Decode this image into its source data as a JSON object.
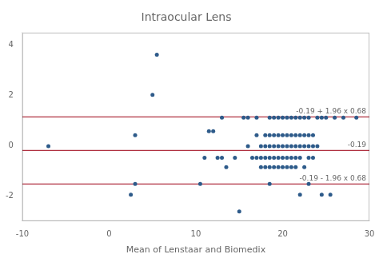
{
  "chart_data": {
    "type": "scatter",
    "title": "Intraocular Lens",
    "xlabel": "Mean of Lenstaar and Biomedix",
    "x": [
      5.5,
      5.0,
      3.0,
      -7.0,
      2.5,
      3.0,
      10.5,
      11.5,
      12.5,
      13.0,
      13.0,
      13.5,
      14.5,
      15.5,
      16.0,
      16.5,
      17.0,
      17.0,
      17.5,
      17.5,
      17.5,
      18.0,
      18.0,
      18.0,
      18.0,
      18.5,
      18.5,
      18.5,
      18.5,
      18.5,
      19.0,
      19.0,
      19.0,
      19.0,
      19.0,
      19.5,
      19.5,
      19.5,
      19.5,
      19.5,
      20.0,
      20.0,
      20.0,
      20.0,
      20.0,
      20.5,
      20.5,
      20.5,
      20.5,
      20.5,
      21.0,
      21.0,
      21.0,
      21.0,
      21.0,
      21.5,
      21.5,
      21.5,
      21.5,
      21.5,
      22.0,
      22.0,
      22.0,
      22.0,
      22.5,
      22.5,
      22.5,
      22.5,
      23.0,
      23.0,
      23.0,
      23.0,
      23.0,
      23.5,
      23.5,
      23.5,
      24.0,
      24.0,
      24.5,
      25.0,
      25.5,
      26.0,
      27.0,
      28.5,
      15.0,
      18.5,
      22.0,
      24.5,
      12.0,
      16.0,
      17.0,
      11.0
    ],
    "values": [
      3.62,
      2.02,
      0.42,
      -0.02,
      -1.95,
      -1.52,
      -1.52,
      0.58,
      -0.48,
      -0.48,
      1.12,
      -0.85,
      -0.48,
      1.12,
      -0.02,
      -0.48,
      -0.48,
      1.12,
      -0.02,
      -0.48,
      -0.85,
      -0.02,
      -0.48,
      -0.85,
      0.42,
      -0.02,
      -0.48,
      -0.85,
      0.42,
      1.12,
      -0.02,
      -0.48,
      -0.85,
      0.42,
      1.12,
      -0.02,
      -0.48,
      -0.85,
      0.42,
      1.12,
      -0.02,
      -0.48,
      -0.85,
      0.42,
      1.12,
      -0.02,
      -0.48,
      -0.85,
      0.42,
      1.12,
      -0.02,
      -0.48,
      -0.85,
      0.42,
      1.12,
      -0.02,
      -0.48,
      -0.85,
      0.42,
      1.12,
      -0.02,
      -0.48,
      0.42,
      1.12,
      -0.02,
      -0.85,
      0.42,
      1.12,
      -0.02,
      -0.48,
      0.42,
      1.12,
      -1.52,
      -0.02,
      -0.48,
      0.42,
      -0.02,
      1.12,
      1.12,
      1.12,
      -1.95,
      1.12,
      1.12,
      1.12,
      -2.62,
      -1.52,
      -1.95,
      -1.95,
      0.58,
      1.12,
      0.42,
      -0.48
    ],
    "color": "#2e5b8a",
    "hlines": [
      {
        "value": -0.19,
        "label": "-0.19",
        "color": "#b03040"
      },
      {
        "value": 1.1428,
        "label": "-0.19 + 1.96 x 0.68",
        "color": "#b03040"
      },
      {
        "value": -1.5228,
        "label": "-0.19 - 1.96 x 0.68",
        "color": "#b03040"
      }
    ],
    "xlim": [
      -10,
      30
    ],
    "ylim": [
      -3,
      4.5
    ],
    "xticks": [
      -10,
      0,
      10,
      20,
      30
    ],
    "yticks": [
      -2,
      0,
      2,
      4
    ],
    "grid": false
  }
}
